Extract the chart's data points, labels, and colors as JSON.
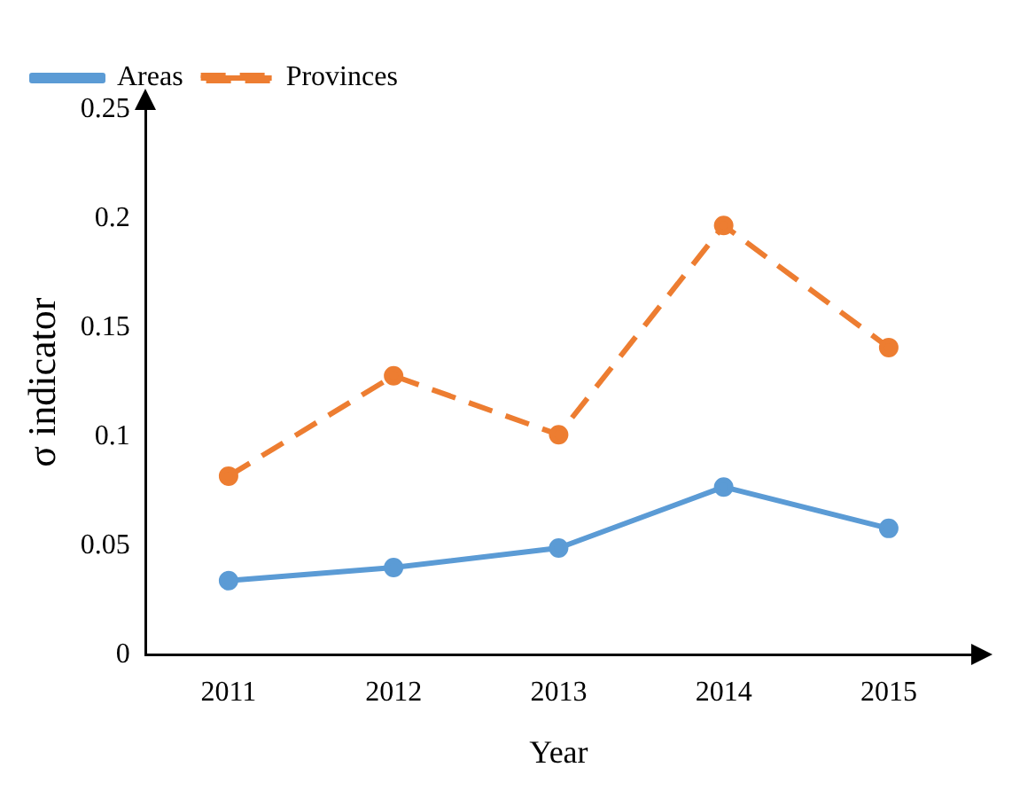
{
  "chart_data": {
    "type": "line",
    "xlabel": "Year",
    "ylabel": "σ indicator",
    "categories": [
      "2011",
      "2012",
      "2013",
      "2014",
      "2015"
    ],
    "series": [
      {
        "name": "Areas",
        "color": "#5b9bd5",
        "values": [
          0.034,
          0.04,
          0.049,
          0.077,
          0.058
        ],
        "line_style": "solid"
      },
      {
        "name": "Provinces",
        "color": "#ed7d31",
        "values": [
          0.082,
          0.128,
          0.101,
          0.197,
          0.141
        ],
        "line_style": "dashed"
      }
    ],
    "ylim": [
      0,
      0.25
    ],
    "yticks": [
      0,
      0.05,
      0.1,
      0.15,
      0.2,
      0.25
    ],
    "grid": false,
    "legend": "top left",
    "marker": "circle"
  }
}
